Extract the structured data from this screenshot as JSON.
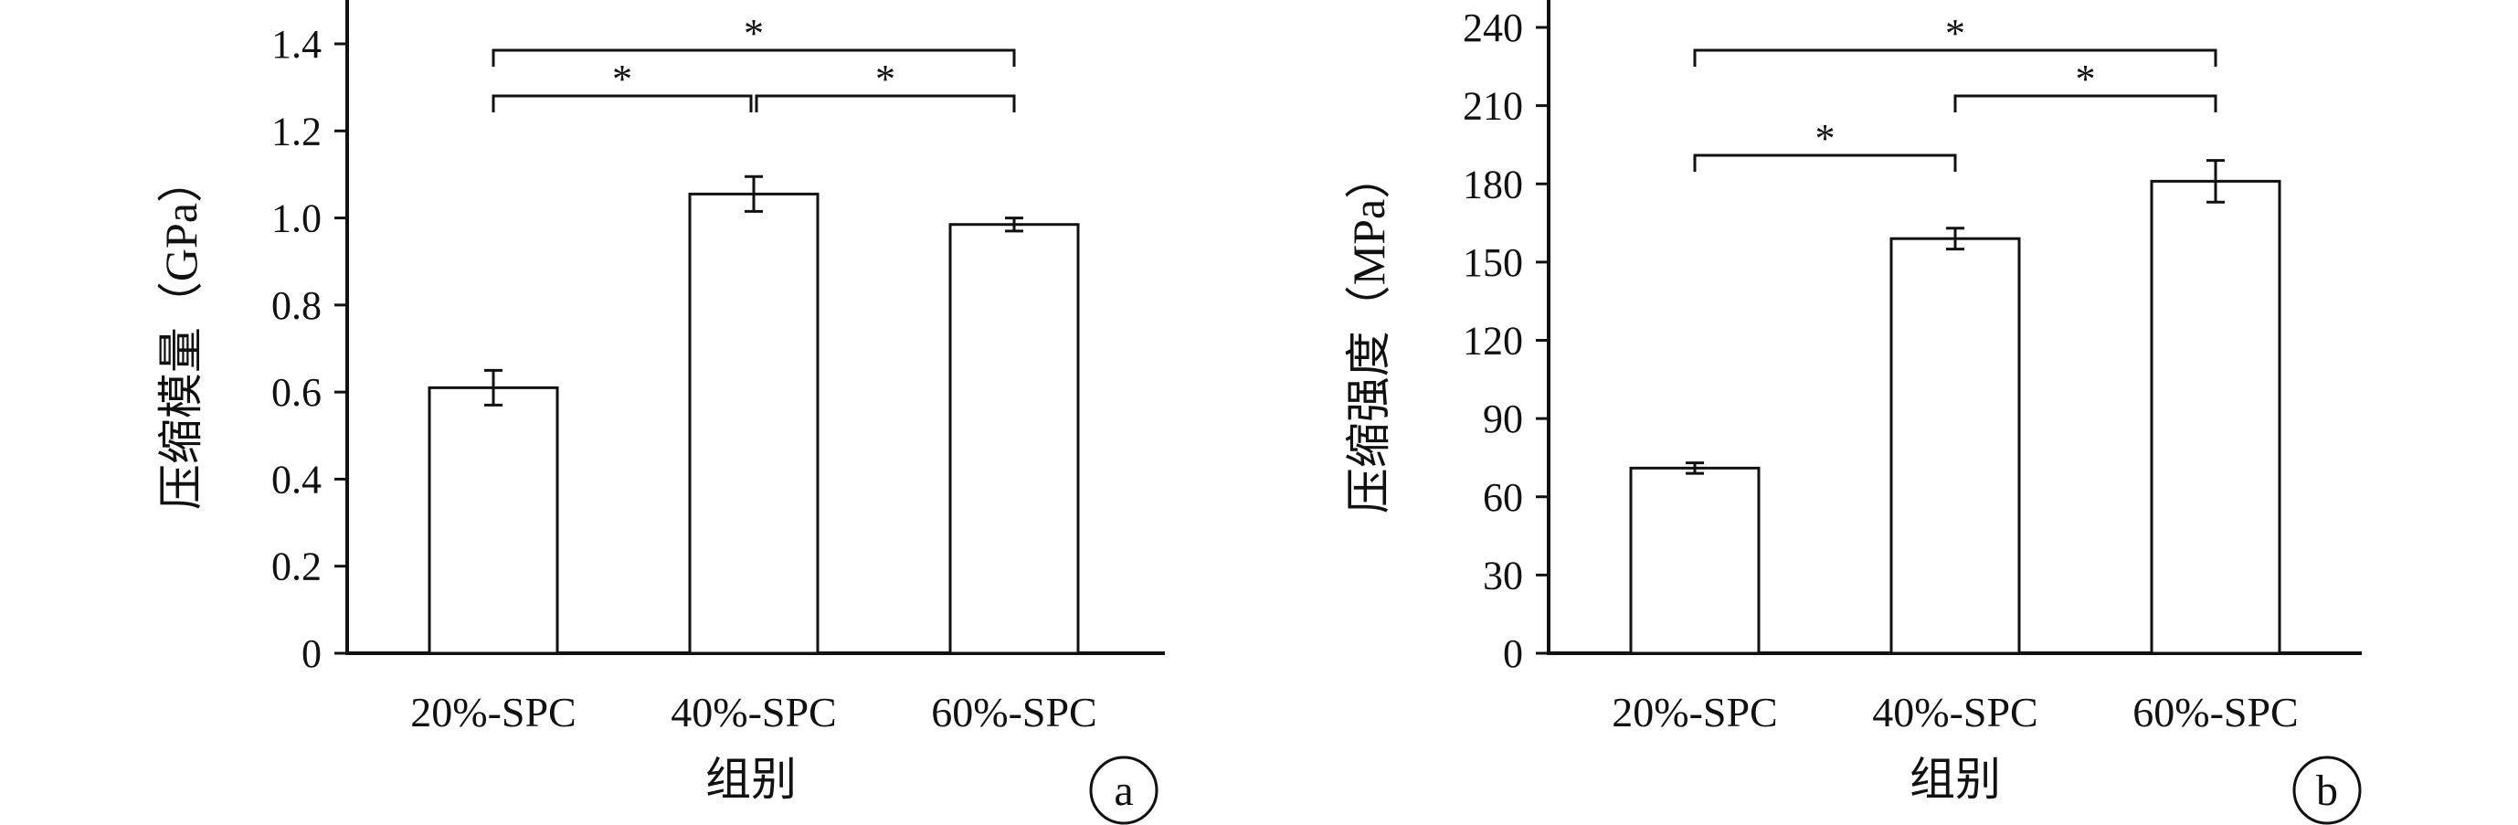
{
  "chart_data": [
    {
      "type": "bar",
      "panel_label": "a",
      "categories": [
        "20%-SPC",
        "40%-SPC",
        "60%-SPC"
      ],
      "values": [
        0.61,
        1.055,
        0.985
      ],
      "errors": [
        0.04,
        0.04,
        0.015
      ],
      "ylabel": "压缩模量（GPa）",
      "xlabel": "组别",
      "ylim": [
        0,
        1.5
      ],
      "yticks": [
        "0",
        "0.2",
        "0.4",
        "0.6",
        "0.8",
        "1.0",
        "1.2",
        "1.4"
      ],
      "significance": [
        {
          "from": 0,
          "to": 2,
          "label": "*"
        },
        {
          "from": 0,
          "to": 1,
          "label": "*"
        },
        {
          "from": 1,
          "to": 2,
          "label": "*"
        }
      ]
    },
    {
      "type": "bar",
      "panel_label": "b",
      "categories": [
        "20%-SPC",
        "40%-SPC",
        "60%-SPC"
      ],
      "values": [
        71,
        159,
        181
      ],
      "errors": [
        2,
        4,
        8
      ],
      "ylabel": "压缩强度（MPa）",
      "xlabel": "组别",
      "ylim": [
        0,
        250
      ],
      "yticks": [
        "0",
        "30",
        "60",
        "90",
        "120",
        "150",
        "180",
        "210",
        "240"
      ],
      "significance": [
        {
          "from": 0,
          "to": 2,
          "label": "*"
        },
        {
          "from": 1,
          "to": 2,
          "label": "*"
        },
        {
          "from": 0,
          "to": 1,
          "label": "*"
        }
      ]
    }
  ]
}
